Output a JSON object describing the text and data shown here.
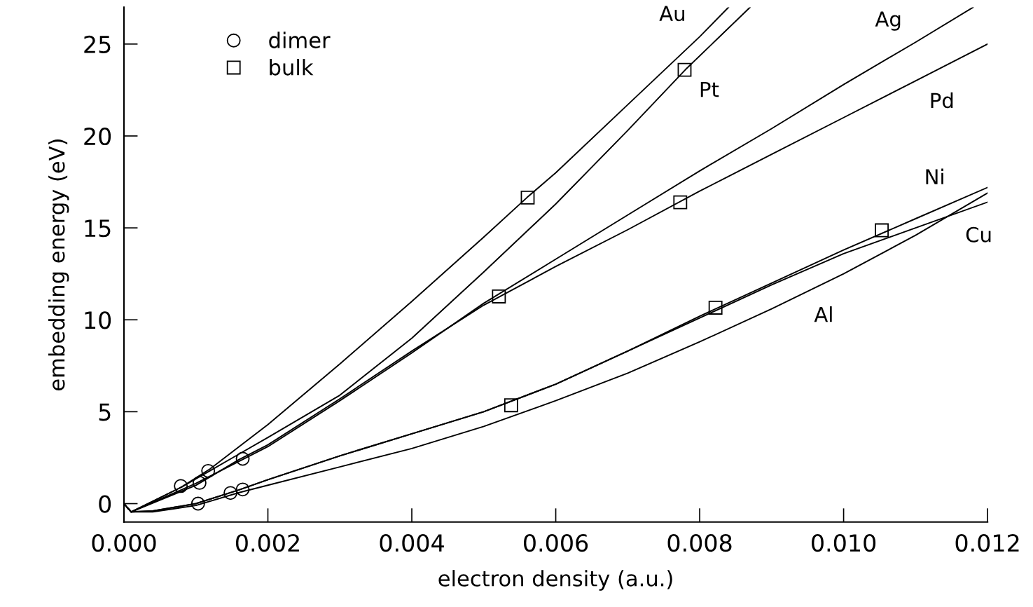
{
  "chart_data": {
    "type": "line",
    "xlabel": "electron density (a.u.)",
    "ylabel": "embedding energy (eV)",
    "xlim": [
      0,
      0.012
    ],
    "ylim": [
      -1,
      27
    ],
    "xticks": [
      {
        "value": 0,
        "label": "0.000"
      },
      {
        "value": 0.002,
        "label": "0.002"
      },
      {
        "value": 0.004,
        "label": "0.004"
      },
      {
        "value": 0.006,
        "label": "0.006"
      },
      {
        "value": 0.008,
        "label": "0.008"
      },
      {
        "value": 0.01,
        "label": "0.010"
      },
      {
        "value": 0.012,
        "label": "0.012"
      }
    ],
    "yticks": [
      0,
      5,
      10,
      15,
      20,
      25
    ],
    "grid": false,
    "legend": "top left",
    "marker": "none",
    "line_style": "solid",
    "series": [
      {
        "color": "#000000",
        "x": [
          0,
          0.0001,
          0.0008,
          0.0012,
          0.0016,
          0.002,
          0.003,
          0.004,
          0.005,
          0.0056,
          0.006,
          0.007,
          0.008,
          0.0084
        ],
        "values": [
          0,
          -0.45,
          0.9,
          1.9,
          3.1,
          4.3,
          7.6,
          11.0,
          14.5,
          16.65,
          18.0,
          21.7,
          25.4,
          27.0
        ]
      },
      {
        "color": "#000000",
        "x": [
          0,
          0.0001,
          0.0008,
          0.0012,
          0.0016,
          0.002,
          0.003,
          0.004,
          0.005,
          0.006,
          0.007,
          0.0078,
          0.0087
        ],
        "values": [
          0,
          -0.45,
          0.9,
          1.8,
          2.7,
          3.6,
          5.9,
          9.0,
          12.6,
          16.3,
          20.3,
          23.6,
          27.0
        ]
      },
      {
        "color": "#000000",
        "x": [
          0,
          0.0001,
          0.001,
          0.0016,
          0.002,
          0.003,
          0.004,
          0.005,
          0.006,
          0.007,
          0.008,
          0.009,
          0.01,
          0.011,
          0.0118
        ],
        "values": [
          0,
          -0.45,
          1.1,
          2.3,
          3.1,
          5.6,
          8.2,
          10.9,
          13.3,
          15.7,
          18.1,
          20.4,
          22.8,
          25.1,
          27.0
        ]
      },
      {
        "color": "#000000",
        "x": [
          0,
          0.0001,
          0.001,
          0.0016,
          0.002,
          0.003,
          0.004,
          0.005,
          0.006,
          0.007,
          0.008,
          0.009,
          0.01,
          0.011,
          0.012
        ],
        "values": [
          0,
          -0.45,
          1.0,
          2.4,
          3.2,
          5.7,
          8.3,
          10.8,
          12.9,
          14.9,
          17.0,
          19.0,
          21.0,
          23.0,
          25.0
        ]
      },
      {
        "color": "#000000",
        "x": [
          0,
          0.0001,
          0.0004,
          0.001,
          0.0016,
          0.002,
          0.003,
          0.004,
          0.005,
          0.006,
          0.007,
          0.008,
          0.009,
          0.01,
          0.011,
          0.012
        ],
        "values": [
          0,
          -0.45,
          -0.4,
          0.0,
          0.75,
          1.3,
          2.6,
          3.8,
          5.0,
          6.5,
          8.3,
          10.2,
          12.0,
          13.8,
          15.5,
          17.2
        ]
      },
      {
        "color": "#000000",
        "x": [
          0,
          0.0001,
          0.0004,
          0.001,
          0.0016,
          0.002,
          0.003,
          0.004,
          0.005,
          0.006,
          0.007,
          0.008,
          0.009,
          0.01,
          0.011,
          0.012
        ],
        "values": [
          0,
          -0.45,
          -0.4,
          0.0,
          0.75,
          1.3,
          2.6,
          3.8,
          5.0,
          6.5,
          8.3,
          10.1,
          11.9,
          13.6,
          15.0,
          16.4
        ]
      },
      {
        "color": "#000000",
        "x": [
          0,
          0.0001,
          0.0004,
          0.001,
          0.0016,
          0.002,
          0.003,
          0.004,
          0.005,
          0.006,
          0.007,
          0.008,
          0.009,
          0.01,
          0.011,
          0.012
        ],
        "values": [
          0,
          -0.45,
          -0.45,
          -0.1,
          0.6,
          1.0,
          2.0,
          3.0,
          4.2,
          5.6,
          7.1,
          8.8,
          10.6,
          12.5,
          14.6,
          16.9
        ]
      },
      {
        "type": "scatter",
        "name": "dimer",
        "marker": "circle",
        "color": "#000000",
        "x": [
          0.00079,
          0.00105,
          0.00117,
          0.00165,
          0.00103,
          0.00148,
          0.00165
        ],
        "values": [
          0.96,
          1.13,
          1.78,
          2.44,
          0.0,
          0.58,
          0.77
        ]
      },
      {
        "type": "scatter",
        "name": "bulk",
        "marker": "square",
        "color": "#000000",
        "x": [
          0.00561,
          0.00779,
          0.00521,
          0.00773,
          0.00822,
          0.01053,
          0.00538
        ],
        "values": [
          16.65,
          23.6,
          11.27,
          16.39,
          10.66,
          14.87,
          5.35
        ]
      }
    ],
    "annotations": [
      {
        "text": "Au",
        "x": 0.008,
        "y": 25.4
      },
      {
        "text": "Pt",
        "x": 0.0078,
        "y": 23.6
      },
      {
        "text": "Ag",
        "x": 0.011,
        "y": 25.1
      },
      {
        "text": "Pd",
        "x": 0.011,
        "y": 23.0
      },
      {
        "text": "Ni",
        "x": 0.0116,
        "y": 16.52
      },
      {
        "text": "Cu",
        "x": 0.0115,
        "y": 15.7
      },
      {
        "text": "Al",
        "x": 0.0094,
        "y": 11.36
      }
    ]
  }
}
